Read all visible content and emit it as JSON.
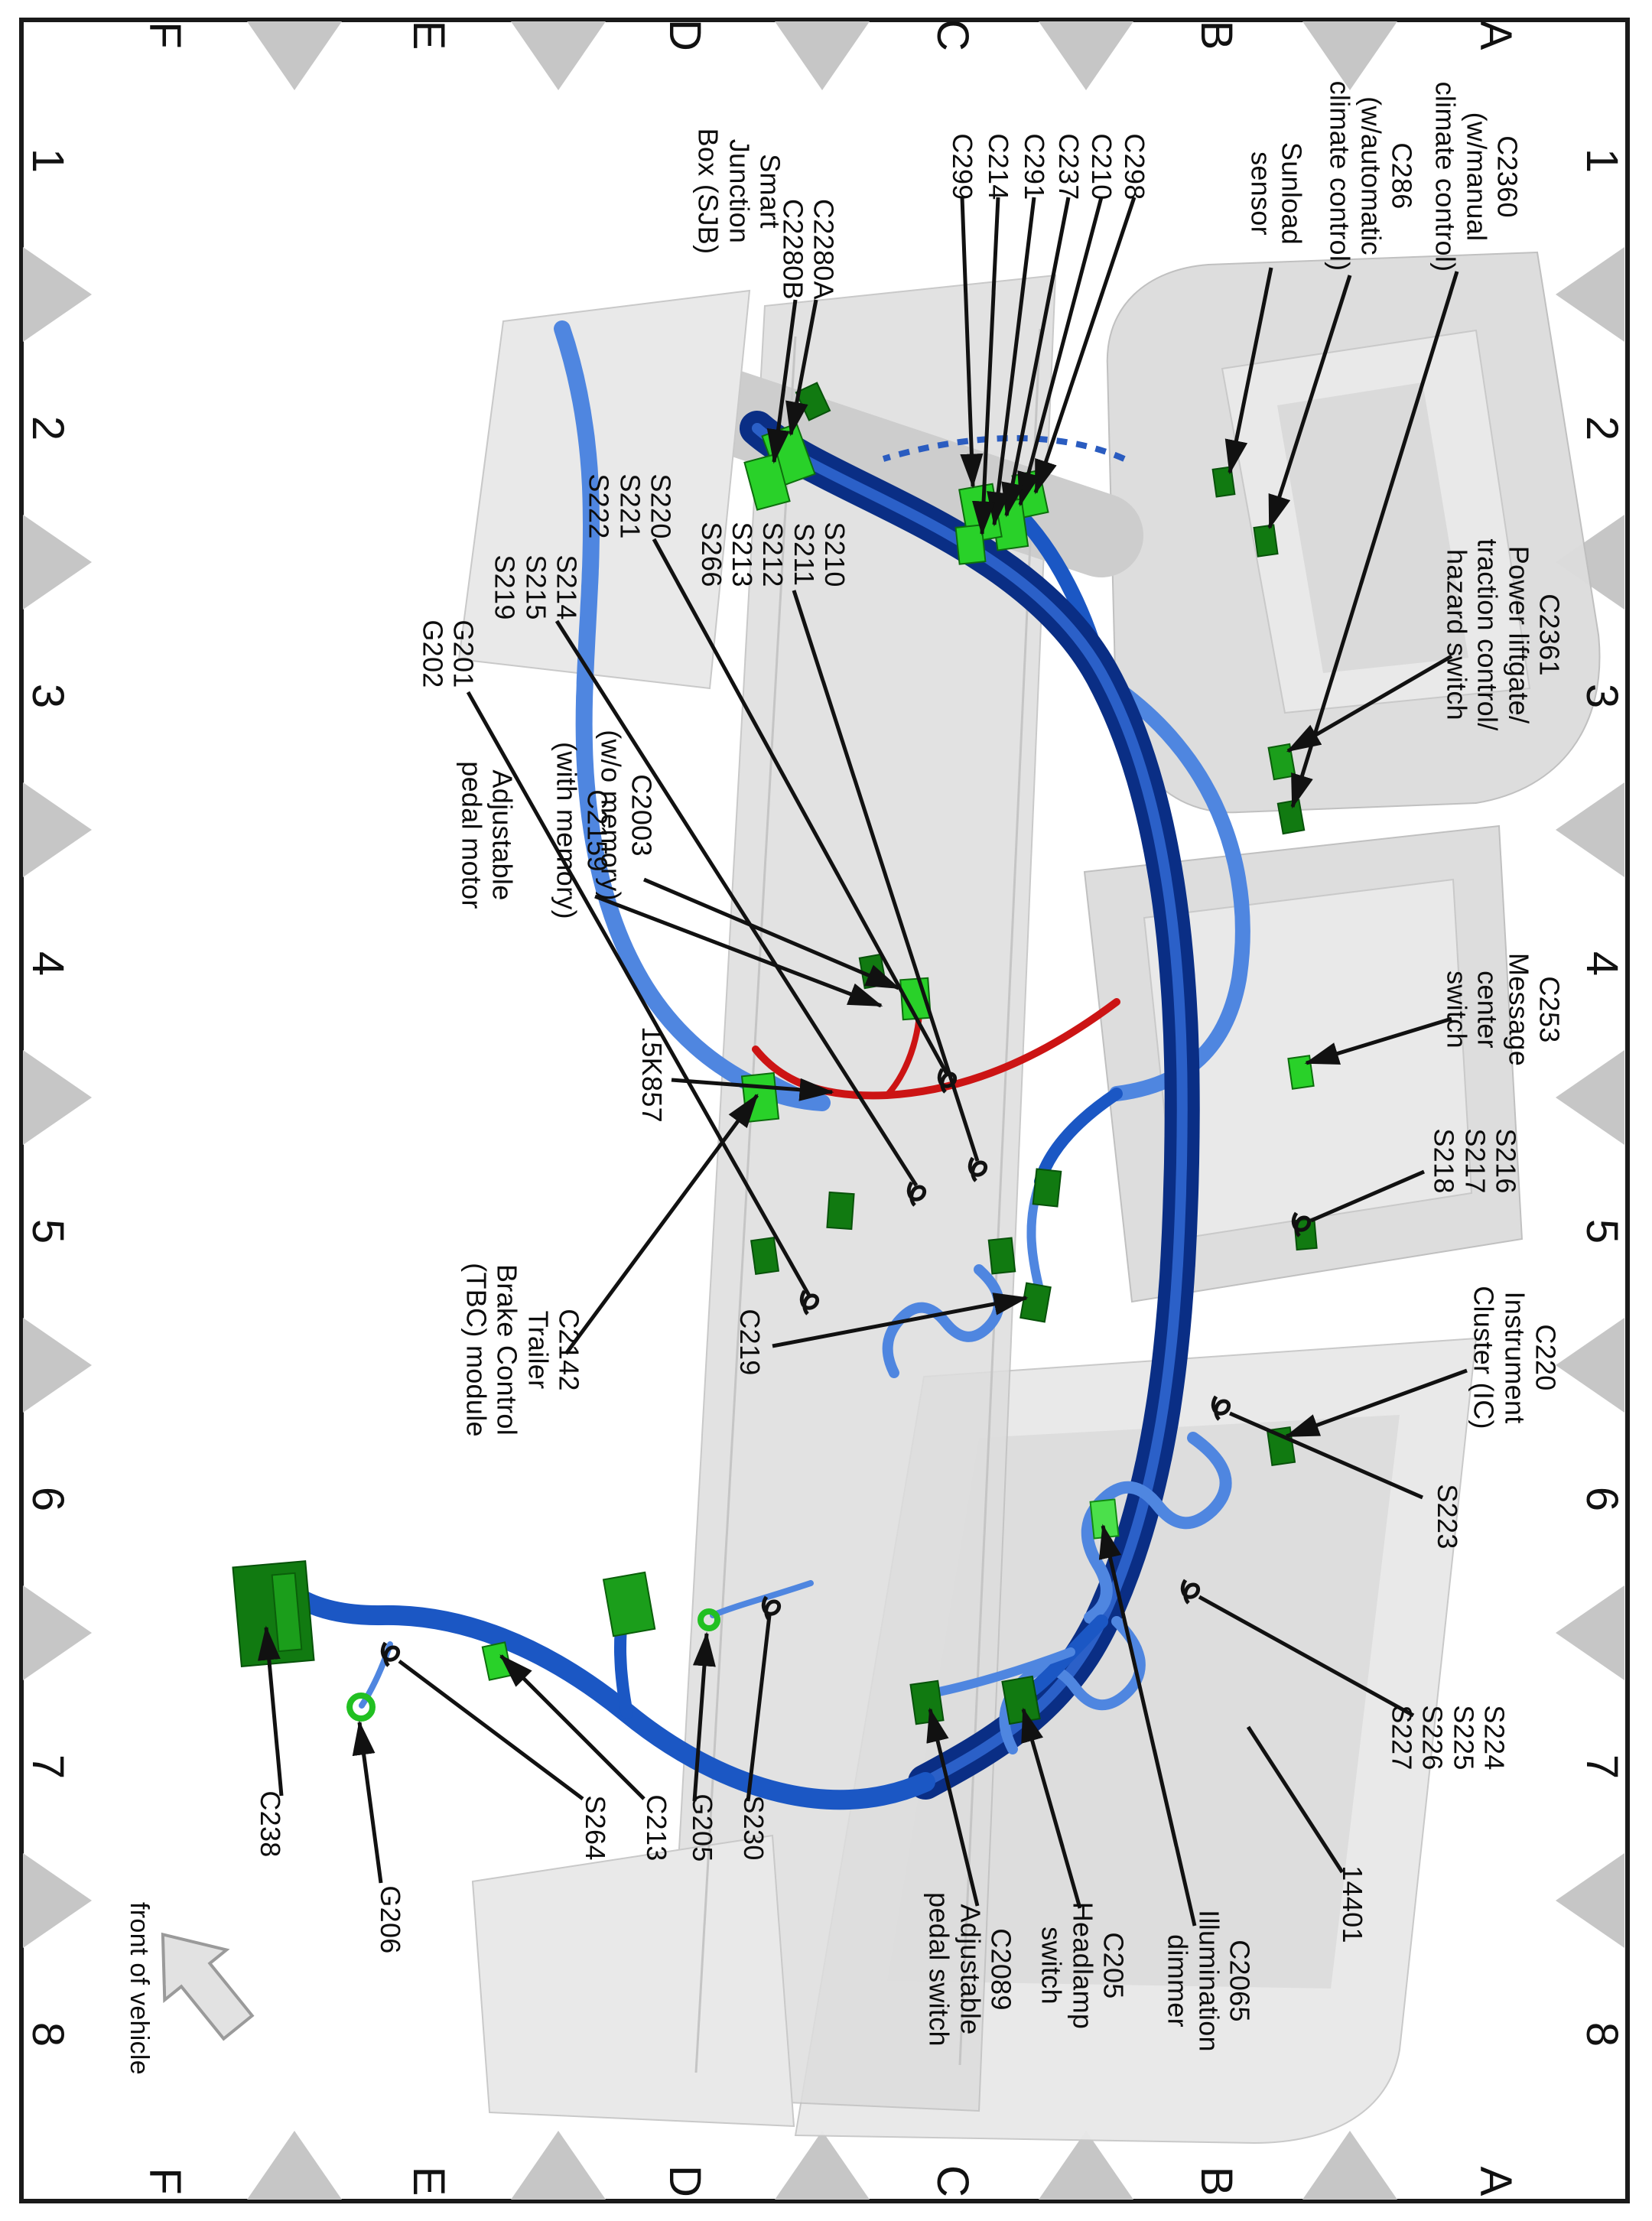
{
  "grid": {
    "letters": [
      "A",
      "B",
      "C",
      "D",
      "E",
      "F"
    ],
    "numbers": [
      "1",
      "2",
      "3",
      "4",
      "5",
      "6",
      "7",
      "8"
    ]
  },
  "front_arrow_label": "front of vehicle",
  "colors": {
    "harness_dark": "#0a2e85",
    "harness_highlight": "#2f66cf",
    "harness_mid": "#1b57c4",
    "harness_light": "#4f86e0",
    "connector_bright": "#29d129",
    "connector_dark": "#117a11",
    "wire_red": "#cc1414",
    "ghost_gray": "#dcdcdc",
    "marker_gray": "#c6c6c6"
  },
  "labels": {
    "c2360": {
      "text": "C2360\n(w/manual\nclimate control)"
    },
    "c286": {
      "text": "C286\n(w/automatic\nclimate control)"
    },
    "sunload": {
      "text": "Sunload\nsensor"
    },
    "c298": {
      "text": "C298"
    },
    "c210": {
      "text": "C210"
    },
    "c237": {
      "text": "C237"
    },
    "c291": {
      "text": "C291"
    },
    "c214": {
      "text": "C214"
    },
    "c299": {
      "text": "C299"
    },
    "c2280": {
      "text": "C2280A\nC2280B"
    },
    "sjb": {
      "text": "Smart\nJunction\nBox (SJB)"
    },
    "c2361": {
      "text": "C2361\nPower liftgate/\ntraction control/\nhazard switch"
    },
    "s220": {
      "text": "S220\nS221\nS222"
    },
    "s210": {
      "text": "S210\nS211\nS212\nS213\nS266"
    },
    "s214": {
      "text": "S214\nS215\nS219"
    },
    "g201": {
      "text": "G201\nG202"
    },
    "c2003": {
      "text": "C2003\n(w/o memory)"
    },
    "c2159": {
      "text": "C2159\n(with memory)"
    },
    "pedal_motor": {
      "text": "Adjustable\npedal motor"
    },
    "k15857": {
      "text": "15K857"
    },
    "c253": {
      "text": "C253\nMessage\ncenter\nswitch"
    },
    "s216": {
      "text": "S216\nS217\nS218"
    },
    "c220": {
      "text": "C220\nInstrument\nCluster (IC)"
    },
    "s223": {
      "text": "S223"
    },
    "c2142": {
      "text": "C2142\nTrailer\nBrake Control\n(TBC) module"
    },
    "c219": {
      "text": "C219"
    },
    "s224": {
      "text": "S224\nS225\nS226\nS227"
    },
    "n14401": {
      "text": "14401"
    },
    "c2065": {
      "text": "C2065\nIllumination\ndimmer"
    },
    "c205": {
      "text": "C205\nHeadlamp\nswitch"
    },
    "c2089": {
      "text": "C2089\nAdjustable\npedal switch"
    },
    "c238": {
      "text": "C238"
    },
    "g206": {
      "text": "G206"
    },
    "s264": {
      "text": "S264"
    },
    "c213": {
      "text": "C213"
    },
    "g205": {
      "text": "G205"
    },
    "s230": {
      "text": "S230"
    }
  }
}
